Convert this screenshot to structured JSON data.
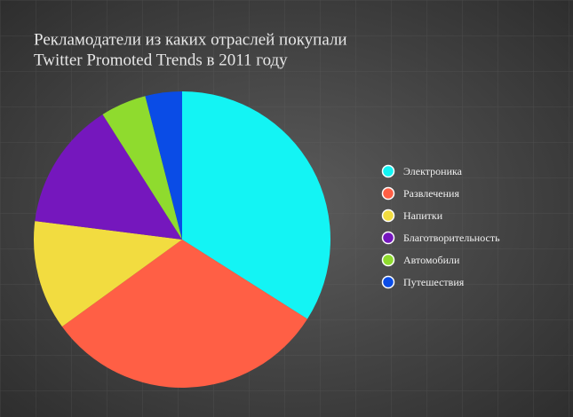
{
  "chart_data": {
    "type": "pie",
    "title": [
      "Рекламодатели из каких отраслей покупали",
      "Twitter Promoted Trends в 2011 году"
    ],
    "categories": [
      "Электроника",
      "Развлечения",
      "Напитки",
      "Благотворительность",
      "Автомобили",
      "Путешествия"
    ],
    "values": [
      34,
      31,
      12,
      14,
      5,
      4
    ],
    "colors": [
      "#13f4f4",
      "#ff5f45",
      "#f2dc40",
      "#7517bd",
      "#8fdb2e",
      "#0a4ce6"
    ],
    "legend": "right"
  }
}
